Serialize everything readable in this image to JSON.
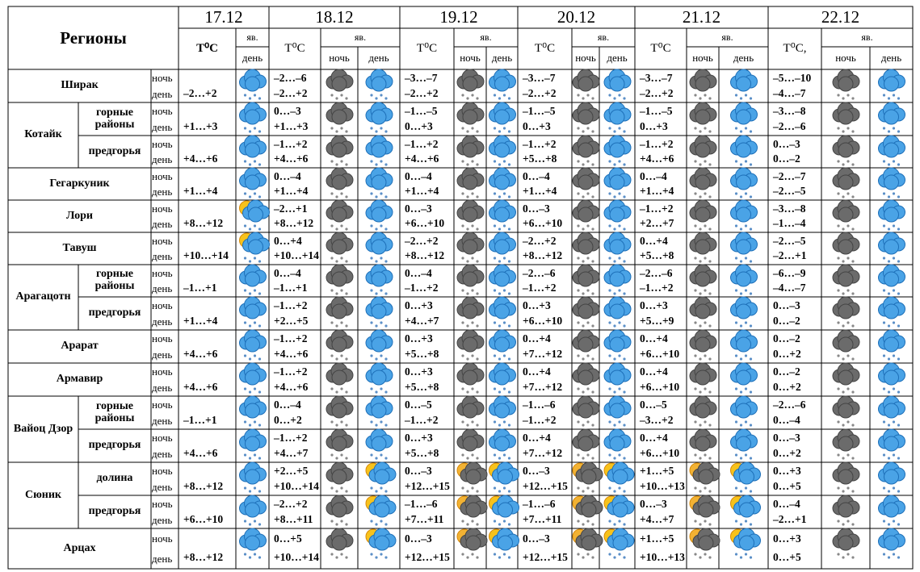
{
  "header": {
    "title": "Регионы",
    "dates": [
      "17.12",
      "18.12",
      "19.12",
      "20.12",
      "21.12",
      "22.12"
    ],
    "temp_labels": [
      "T⁰C",
      "T⁰C",
      "T⁰C",
      "T⁰C",
      "T⁰C",
      "T⁰C,"
    ],
    "phenomenon": "яв.",
    "night": "ночь",
    "day": "день"
  },
  "regions": [
    {
      "name": "Ширак",
      "subregions": [
        {
          "name": null,
          "temps": [
            {
              "day": "–2…+2"
            },
            {
              "night": "–2…–6",
              "day": "–2…+2"
            },
            {
              "night": "–3…–7",
              "day": "–2…+2"
            },
            {
              "night": "–3…–7",
              "day": "–2…+2"
            },
            {
              "night": "–3…–7",
              "day": "–2…+2"
            },
            {
              "night": "–5…–10",
              "day": "–4…–7"
            }
          ]
        }
      ]
    },
    {
      "name": "Котайк",
      "subregions": [
        {
          "name": "горные районы",
          "temps": [
            {
              "day": "+1…+3"
            },
            {
              "night": "0…–3",
              "day": "+1…+3"
            },
            {
              "night": "–1…–5",
              "day": "0…+3"
            },
            {
              "night": "–1…–5",
              "day": "0…+3"
            },
            {
              "night": "–1…–5",
              "day": "0…+3"
            },
            {
              "night": "–3…–8",
              "day": "–2…–6"
            }
          ]
        },
        {
          "name": "предгорья",
          "temps": [
            {
              "day": "+4…+6"
            },
            {
              "night": "–1…+2",
              "day": "+4…+6"
            },
            {
              "night": "–1…+2",
              "day": "+4…+6"
            },
            {
              "night": "–1…+2",
              "day": "+5…+8"
            },
            {
              "night": "–1…+2",
              "day": "+4…+6"
            },
            {
              "night": "0…–3",
              "day": "0…–2"
            }
          ]
        }
      ]
    },
    {
      "name": "Гегаркуник",
      "subregions": [
        {
          "name": null,
          "temps": [
            {
              "day": "+1…+4"
            },
            {
              "night": "0…–4",
              "day": "+1…+4"
            },
            {
              "night": "0…–4",
              "day": "+1…+4"
            },
            {
              "night": "0…–4",
              "day": "+1…+4"
            },
            {
              "night": "0…–4",
              "day": "+1…+4"
            },
            {
              "night": "–2…–7",
              "day": "–2…–5"
            }
          ]
        }
      ]
    },
    {
      "name": "Лори",
      "subregions": [
        {
          "name": null,
          "temps": [
            {
              "day": "+8…+12"
            },
            {
              "night": "–2…+1",
              "day": "+8…+12"
            },
            {
              "night": "0…–3",
              "day": "+6…+10"
            },
            {
              "night": "0…–3",
              "day": "+6…+10"
            },
            {
              "night": "–1…+2",
              "day": "+2…+7"
            },
            {
              "night": "–3…–8",
              "day": "–1…–4"
            }
          ]
        }
      ]
    },
    {
      "name": "Тавуш",
      "subregions": [
        {
          "name": null,
          "temps": [
            {
              "day": "+10…+14"
            },
            {
              "night": "0…+4",
              "day": "+10…+14"
            },
            {
              "night": "–2…+2",
              "day": "+8…+12"
            },
            {
              "night": "–2…+2",
              "day": "+8…+12"
            },
            {
              "night": "0…+4",
              "day": "+5…+8"
            },
            {
              "night": "–2…–5",
              "day": "–2…+1"
            }
          ]
        }
      ]
    },
    {
      "name": "Арагацотн",
      "subregions": [
        {
          "name": "горные районы",
          "temps": [
            {
              "day": "–1…+1"
            },
            {
              "night": "0…–4",
              "day": "–1…+1"
            },
            {
              "night": "0…–4",
              "day": "–1…+2"
            },
            {
              "night": "–2…–6",
              "day": "–1…+2"
            },
            {
              "night": "–2…–6",
              "day": "–1…+2"
            },
            {
              "night": "–6…–9",
              "day": "–4…–7"
            }
          ]
        },
        {
          "name": "предгорья",
          "temps": [
            {
              "day": "+1…+4"
            },
            {
              "night": "–1…+2",
              "day": "+2…+5"
            },
            {
              "night": "0…+3",
              "day": "+4…+7"
            },
            {
              "night": "0…+3",
              "day": "+6…+10"
            },
            {
              "night": "0…+3",
              "day": "+5…+9"
            },
            {
              "night": "0…–3",
              "day": "0…–2"
            }
          ]
        }
      ]
    },
    {
      "name": "Арарат",
      "subregions": [
        {
          "name": null,
          "temps": [
            {
              "day": "+4…+6"
            },
            {
              "night": "–1…+2",
              "day": "+4…+6"
            },
            {
              "night": "0…+3",
              "day": "+5…+8"
            },
            {
              "night": "0…+4",
              "day": "+7…+12"
            },
            {
              "night": "0…+4",
              "day": "+6…+10"
            },
            {
              "night": "0…–2",
              "day": "0…+2"
            }
          ]
        }
      ]
    },
    {
      "name": "Армавир",
      "subregions": [
        {
          "name": null,
          "temps": [
            {
              "day": "+4…+6"
            },
            {
              "night": "–1…+2",
              "day": "+4…+6"
            },
            {
              "night": "0…+3",
              "day": "+5…+8"
            },
            {
              "night": "0…+4",
              "day": "+7…+12"
            },
            {
              "night": "0…+4",
              "day": "+6…+10"
            },
            {
              "night": "0…–2",
              "day": "0…+2"
            }
          ]
        }
      ]
    },
    {
      "name": "Вайоц Дзор",
      "subregions": [
        {
          "name": "горные районы",
          "temps": [
            {
              "day": "–1…+1"
            },
            {
              "night": "0…–4",
              "day": "0…+2"
            },
            {
              "night": "0…–5",
              "day": "–1…+2"
            },
            {
              "night": "–1…–6",
              "day": "–1…+2"
            },
            {
              "night": "0…–5",
              "day": "–3…+2"
            },
            {
              "night": "–2…–6",
              "day": "0…–4"
            }
          ]
        },
        {
          "name": "предгорья",
          "temps": [
            {
              "day": "+4…+6"
            },
            {
              "night": "–1…+2",
              "day": "+4…+7"
            },
            {
              "night": "0…+3",
              "day": "+5…+8"
            },
            {
              "night": "0…+4",
              "day": "+7…+12"
            },
            {
              "night": "0…+4",
              "day": "+6…+10"
            },
            {
              "night": "0…–3",
              "day": "0…+2"
            }
          ]
        }
      ]
    },
    {
      "name": "Сюник",
      "subregions": [
        {
          "name": "долина",
          "temps": [
            {
              "day": "+8…+12"
            },
            {
              "night": "+2…+5",
              "day": "+10…+14"
            },
            {
              "night": "0…–3",
              "day": "+12…+15"
            },
            {
              "night": "0…–3",
              "day": "+12…+15"
            },
            {
              "night": "+1…+5",
              "day": "+10…+13"
            },
            {
              "night": "0…+3",
              "day": "0…+5"
            }
          ]
        },
        {
          "name": "предгорья",
          "temps": [
            {
              "day": "+6…+10"
            },
            {
              "night": "–2…+2",
              "day": "+8…+11"
            },
            {
              "night": "–1…–6",
              "day": "+7…+11"
            },
            {
              "night": "–1…–6",
              "day": "+7…+11"
            },
            {
              "night": "0…–3",
              "day": "+4…+7"
            },
            {
              "night": "0…–4",
              "day": "–2…+1"
            }
          ]
        }
      ]
    },
    {
      "name": "Арцах",
      "subregions": [
        {
          "name": null,
          "temps": [
            {
              "day": "+8…+12"
            },
            {
              "night": "0…+5",
              "day": "+10…+14"
            },
            {
              "night": "0…–3",
              "day": "+12…+15"
            },
            {
              "night": "0…–3",
              "day": "+12…+15"
            },
            {
              "night": "+1…+5",
              "day": "+10…+13"
            },
            {
              "night": "0…+3",
              "day": "0…+5"
            }
          ]
        }
      ]
    }
  ]
}
